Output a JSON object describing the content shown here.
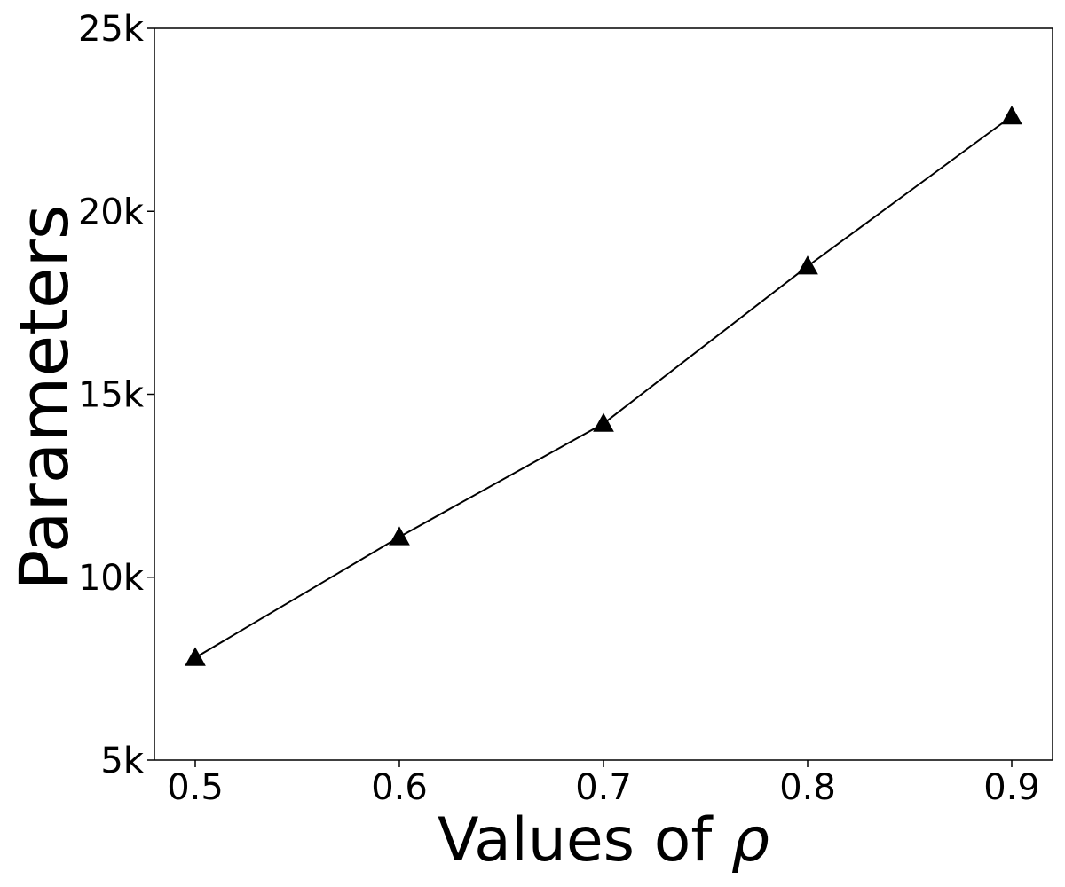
{
  "chart_data": {
    "type": "line",
    "x": [
      0.5,
      0.6,
      0.7,
      0.8,
      0.9
    ],
    "series": [
      {
        "values": [
          7800,
          11100,
          14200,
          18500,
          22600
        ],
        "color": "#000000",
        "marker": "triangle-up"
      }
    ],
    "xlabel_prefix": "Values of ",
    "xlabel_symbol": "ρ",
    "ylabel": "Parameters",
    "xlim": [
      0.48,
      0.92
    ],
    "ylim": [
      5000,
      25000
    ],
    "xticks": [
      {
        "value": 0.5,
        "label": "0.5"
      },
      {
        "value": 0.6,
        "label": "0.6"
      },
      {
        "value": 0.7,
        "label": "0.7"
      },
      {
        "value": 0.8,
        "label": "0.8"
      },
      {
        "value": 0.9,
        "label": "0.9"
      }
    ],
    "yticks": [
      {
        "value": 5000,
        "label": "5k"
      },
      {
        "value": 10000,
        "label": "10k"
      },
      {
        "value": 15000,
        "label": "15k"
      },
      {
        "value": 20000,
        "label": "20k"
      },
      {
        "value": 25000,
        "label": "25k"
      }
    ],
    "grid": false,
    "legend": "none"
  }
}
